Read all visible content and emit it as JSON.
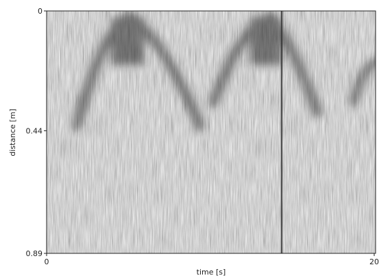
{
  "chart_data": {
    "type": "image",
    "xlabel": "time [s]",
    "ylabel": "distance [m]",
    "xlim": [
      0,
      20
    ],
    "ylim": [
      0.89,
      0
    ],
    "xticks": [
      0,
      20
    ],
    "yticks": [
      0,
      0.44,
      0.89
    ]
  }
}
